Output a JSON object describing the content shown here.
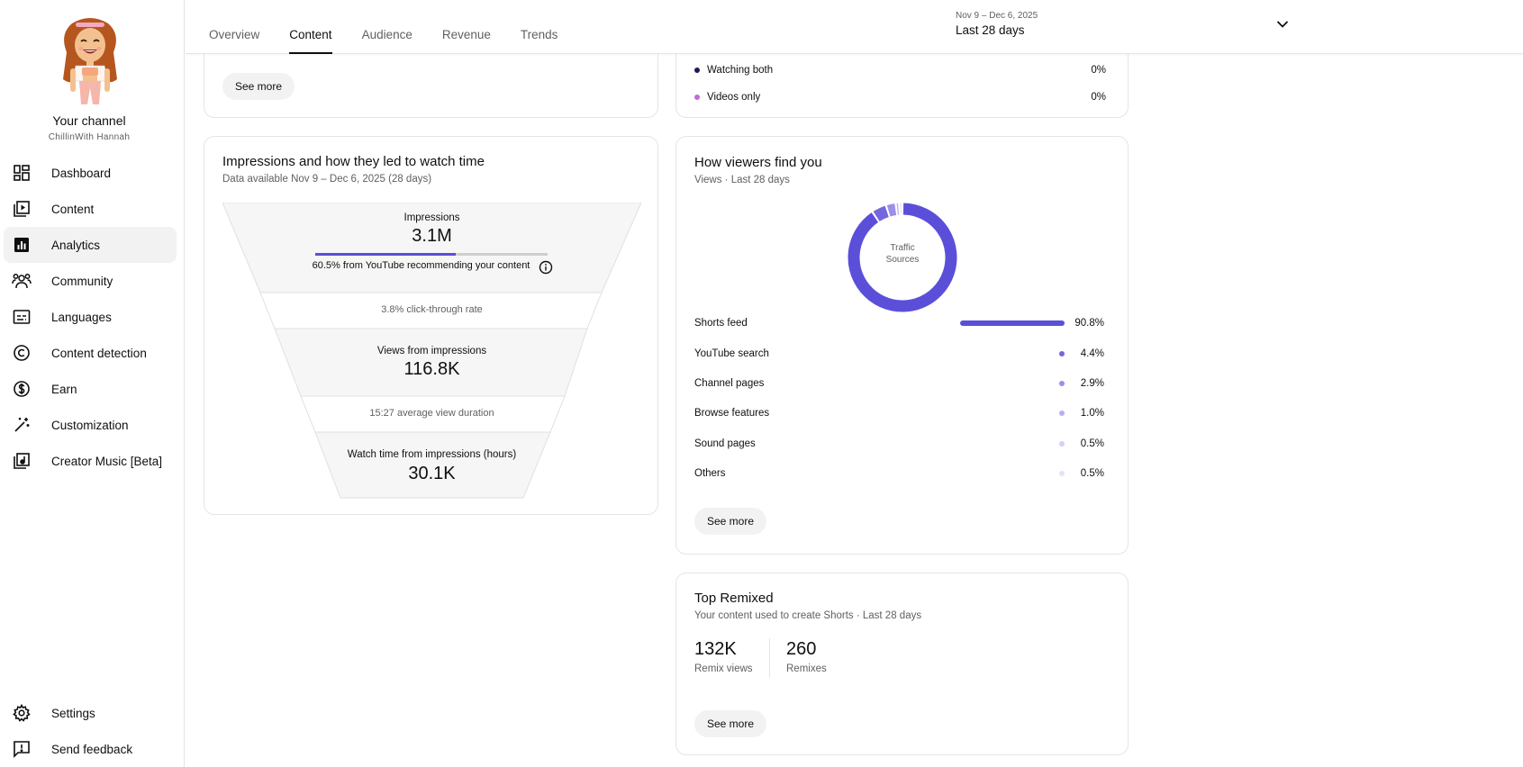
{
  "sidebar": {
    "channel_title": "Your channel",
    "channel_handle": "ChillinWith Hannah",
    "items": [
      {
        "label": "Dashboard",
        "icon": "dashboard-icon"
      },
      {
        "label": "Content",
        "icon": "content-icon"
      },
      {
        "label": "Analytics",
        "icon": "analytics-icon",
        "active": true
      },
      {
        "label": "Community",
        "icon": "community-icon"
      },
      {
        "label": "Languages",
        "icon": "subtitles-icon"
      },
      {
        "label": "Content detection",
        "icon": "copyright-icon"
      },
      {
        "label": "Earn",
        "icon": "dollar-icon"
      },
      {
        "label": "Customization",
        "icon": "magic-wand-icon"
      },
      {
        "label": "Creator Music [Beta]",
        "icon": "music-library-icon"
      }
    ],
    "bottom_items": [
      {
        "label": "Settings",
        "icon": "gear-icon"
      },
      {
        "label": "Send feedback",
        "icon": "feedback-icon"
      }
    ]
  },
  "header": {
    "tabs": [
      "Overview",
      "Content",
      "Audience",
      "Revenue",
      "Trends"
    ],
    "active_tab": "Content",
    "date_range": "Nov 9 – Dec 6, 2025",
    "date_label": "Last 28 days"
  },
  "top_left_card": {
    "see_more": "See more"
  },
  "top_right_card": {
    "rows": [
      {
        "label": "Watching both",
        "value": "0%",
        "color": "#1f1a4f"
      },
      {
        "label": "Videos only",
        "value": "0%",
        "color": "#c06bd6"
      }
    ]
  },
  "funnel": {
    "title": "Impressions and how they led to watch time",
    "subtitle": "Data available Nov 9 – Dec 6, 2025 (28 days)",
    "impressions_label": "Impressions",
    "impressions_value": "3.1M",
    "recommend_fraction": 0.605,
    "recommend_text": "60.5% from YouTube recommending your content",
    "ctr_text": "3.8% click-through rate",
    "views_label": "Views from impressions",
    "views_value": "116.8K",
    "avg_duration_text": "15:27 average view duration",
    "watch_label": "Watch time from impressions (hours)",
    "watch_value": "30.1K"
  },
  "traffic": {
    "title": "How viewers find you",
    "subtitle": "Views · Last 28 days",
    "donut_label_1": "Traffic",
    "donut_label_2": "Sources",
    "see_more": "See more",
    "sources": [
      {
        "label": "Shorts feed",
        "value": "90.8%",
        "pct": 90.8,
        "color": "#5b4fd9"
      },
      {
        "label": "YouTube search",
        "value": "4.4%",
        "pct": 4.4,
        "color": "#7467de"
      },
      {
        "label": "Channel pages",
        "value": "2.9%",
        "pct": 2.9,
        "color": "#9a90e6"
      },
      {
        "label": "Browse features",
        "value": "1.0%",
        "pct": 1.0,
        "color": "#b7b0ee"
      },
      {
        "label": "Sound pages",
        "value": "0.5%",
        "pct": 0.5,
        "color": "#d3cff5"
      },
      {
        "label": "Others",
        "value": "0.5%",
        "pct": 0.5,
        "color": "#e4e1f8"
      }
    ]
  },
  "remix": {
    "title": "Top Remixed",
    "subtitle": "Your content used to create Shorts · Last 28 days",
    "views_value": "132K",
    "views_label": "Remix views",
    "remixes_value": "260",
    "remixes_label": "Remixes",
    "see_more": "See more"
  }
}
